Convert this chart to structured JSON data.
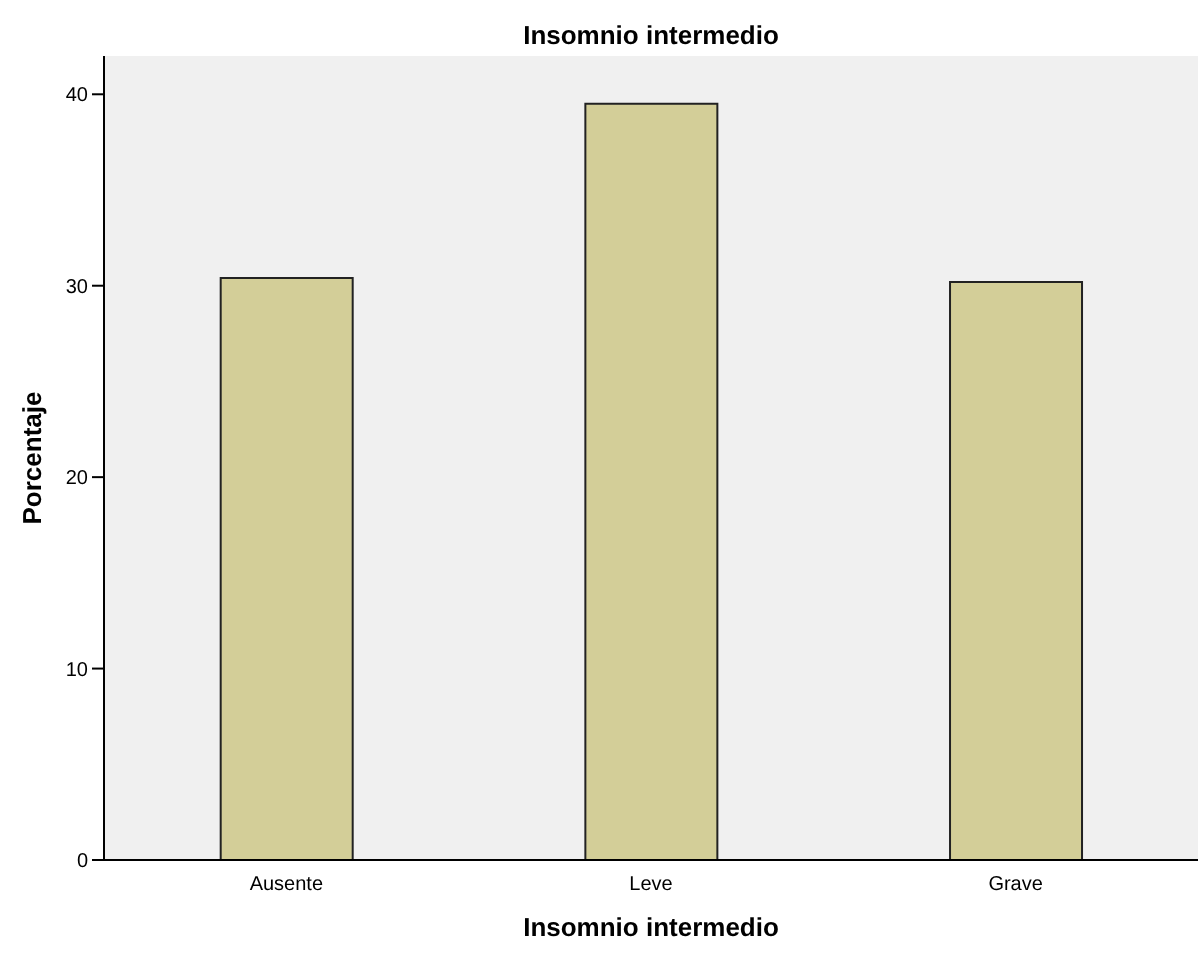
{
  "chart_data": {
    "type": "bar",
    "title": "Insomnio intermedio",
    "xlabel": "Insomnio intermedio",
    "ylabel": "Porcentaje",
    "categories": [
      "Ausente",
      "Leve",
      "Grave"
    ],
    "values": [
      30.4,
      39.5,
      30.2
    ],
    "color": "#d3ce98",
    "ylim": [
      0,
      42
    ],
    "yticks": [
      0,
      10,
      20,
      30,
      40
    ],
    "grid": false
  }
}
